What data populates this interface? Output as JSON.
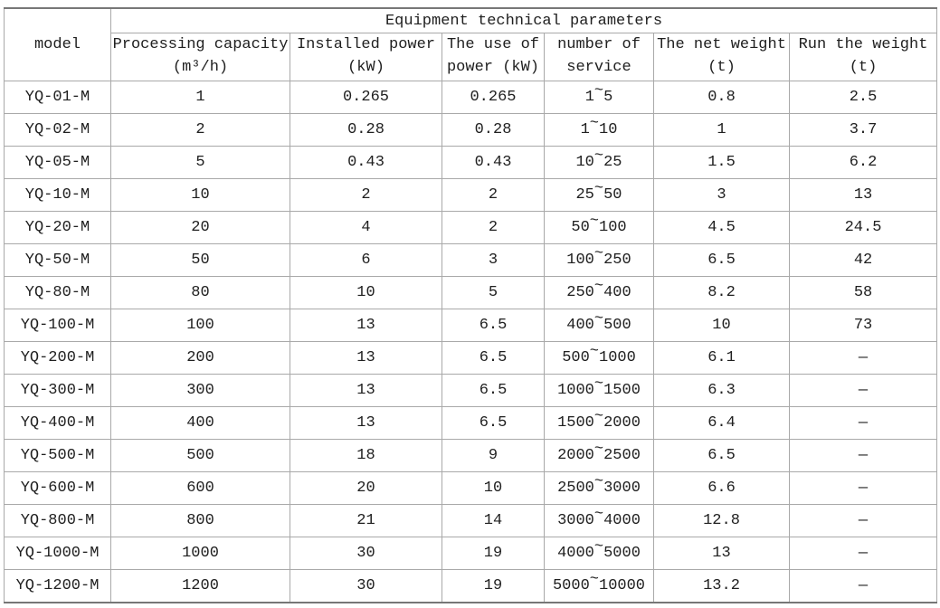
{
  "table": {
    "group_header": "Equipment technical parameters",
    "model_header": "model",
    "column_keys": [
      "model",
      "processing_capacity",
      "installed_power",
      "use_of_power",
      "number_of_service",
      "net_weight",
      "run_weight"
    ],
    "columns": [
      {
        "line1": "Processing capacity",
        "line2": "(m³/h)"
      },
      {
        "line1": "Installed power",
        "line2": "(kW)"
      },
      {
        "line1": "The use of",
        "line2": "power (kW)"
      },
      {
        "line1": "number of",
        "line2": "service"
      },
      {
        "line1": "The net weight",
        "line2": "(t)"
      },
      {
        "line1": "Run the weight",
        "line2": "(t)"
      }
    ],
    "colors": {
      "inner_border": "#a9a9a9",
      "outer_border": "#777777",
      "text": "#202020",
      "background": "#ffffff"
    },
    "rows": [
      {
        "model": "YQ-01-M",
        "processing_capacity": "1",
        "installed_power": "0.265",
        "use_of_power": "0.265",
        "number_of_service": "1~5",
        "net_weight": "0.8",
        "run_weight": "2.5"
      },
      {
        "model": "YQ-02-M",
        "processing_capacity": "2",
        "installed_power": "0.28",
        "use_of_power": "0.28",
        "number_of_service": "1~10",
        "net_weight": "1",
        "run_weight": "3.7"
      },
      {
        "model": "YQ-05-M",
        "processing_capacity": "5",
        "installed_power": "0.43",
        "use_of_power": "0.43",
        "number_of_service": "10~25",
        "net_weight": "1.5",
        "run_weight": "6.2"
      },
      {
        "model": "YQ-10-M",
        "processing_capacity": "10",
        "installed_power": "2",
        "use_of_power": "2",
        "number_of_service": "25~50",
        "net_weight": "3",
        "run_weight": "13"
      },
      {
        "model": "YQ-20-M",
        "processing_capacity": "20",
        "installed_power": "4",
        "use_of_power": "2",
        "number_of_service": "50~100",
        "net_weight": "4.5",
        "run_weight": "24.5"
      },
      {
        "model": "YQ-50-M",
        "processing_capacity": "50",
        "installed_power": "6",
        "use_of_power": "3",
        "number_of_service": "100~250",
        "net_weight": "6.5",
        "run_weight": "42"
      },
      {
        "model": "YQ-80-M",
        "processing_capacity": "80",
        "installed_power": "10",
        "use_of_power": "5",
        "number_of_service": "250~400",
        "net_weight": "8.2",
        "run_weight": "58"
      },
      {
        "model": "YQ-100-M",
        "processing_capacity": "100",
        "installed_power": "13",
        "use_of_power": "6.5",
        "number_of_service": "400~500",
        "net_weight": "10",
        "run_weight": "73"
      },
      {
        "model": "YQ-200-M",
        "processing_capacity": "200",
        "installed_power": "13",
        "use_of_power": "6.5",
        "number_of_service": "500~1000",
        "net_weight": "6.1",
        "run_weight": "—"
      },
      {
        "model": "YQ-300-M",
        "processing_capacity": "300",
        "installed_power": "13",
        "use_of_power": "6.5",
        "number_of_service": "1000~1500",
        "net_weight": "6.3",
        "run_weight": "—"
      },
      {
        "model": "YQ-400-M",
        "processing_capacity": "400",
        "installed_power": "13",
        "use_of_power": "6.5",
        "number_of_service": "1500~2000",
        "net_weight": "6.4",
        "run_weight": "—"
      },
      {
        "model": "YQ-500-M",
        "processing_capacity": "500",
        "installed_power": "18",
        "use_of_power": "9",
        "number_of_service": "2000~2500",
        "net_weight": "6.5",
        "run_weight": "—"
      },
      {
        "model": "YQ-600-M",
        "processing_capacity": "600",
        "installed_power": "20",
        "use_of_power": "10",
        "number_of_service": "2500~3000",
        "net_weight": "6.6",
        "run_weight": "—"
      },
      {
        "model": "YQ-800-M",
        "processing_capacity": "800",
        "installed_power": "21",
        "use_of_power": "14",
        "number_of_service": "3000~4000",
        "net_weight": "12.8",
        "run_weight": "—"
      },
      {
        "model": "YQ-1000-M",
        "processing_capacity": "1000",
        "installed_power": "30",
        "use_of_power": "19",
        "number_of_service": "4000~5000",
        "net_weight": "13",
        "run_weight": "—"
      },
      {
        "model": "YQ-1200-M",
        "processing_capacity": "1200",
        "installed_power": "30",
        "use_of_power": "19",
        "number_of_service": "5000~10000",
        "net_weight": "13.2",
        "run_weight": "—"
      }
    ]
  }
}
